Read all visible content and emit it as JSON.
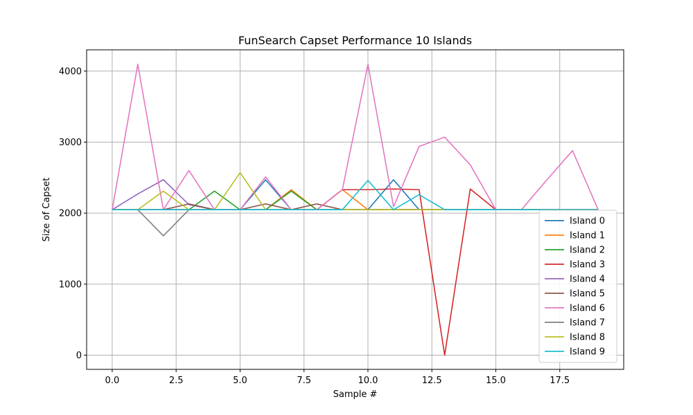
{
  "chart_data": {
    "type": "line",
    "title": "FunSearch Capset Performance 10 Islands",
    "xlabel": "Sample #",
    "ylabel": "Size of Capset",
    "xlim": [
      -1,
      20
    ],
    "ylim": [
      -200,
      4300
    ],
    "xticks": [
      0.0,
      2.5,
      5.0,
      7.5,
      10.0,
      12.5,
      15.0,
      17.5
    ],
    "xtick_labels": [
      "0.0",
      "2.5",
      "5.0",
      "7.5",
      "10.0",
      "12.5",
      "15.0",
      "17.5"
    ],
    "yticks": [
      0,
      1000,
      2000,
      3000,
      4000
    ],
    "ytick_labels": [
      "0",
      "1000",
      "2000",
      "3000",
      "4000"
    ],
    "grid": true,
    "legend_position": "lower-right",
    "x": [
      0,
      1,
      2,
      3,
      4,
      5,
      6,
      7,
      8,
      9,
      10,
      11,
      12,
      13,
      14,
      15,
      16,
      17,
      18,
      19
    ],
    "series": [
      {
        "name": "Island 0",
        "color": "#1f77b4",
        "values": [
          2048,
          2048,
          2048,
          2048,
          2048,
          2048,
          2470,
          2048,
          2048,
          2048,
          2048,
          2470,
          2048,
          2048,
          2048,
          2048,
          2048,
          2048,
          2048,
          2048
        ]
      },
      {
        "name": "Island 1",
        "color": "#ff7f0e",
        "values": [
          2048,
          2048,
          2048,
          2048,
          2048,
          2048,
          2048,
          2330,
          2048,
          2330,
          2048,
          2048,
          2048,
          2048,
          2048,
          2048,
          2048,
          2048,
          2048,
          2048
        ]
      },
      {
        "name": "Island 2",
        "color": "#2ca02c",
        "values": [
          2048,
          2048,
          2048,
          2048,
          2310,
          2048,
          2048,
          2310,
          2048,
          2048,
          2048,
          2048,
          2048,
          2048,
          2048,
          2048,
          2048,
          2048,
          2048,
          2048
        ]
      },
      {
        "name": "Island 3",
        "color": "#d62728",
        "values": [
          2048,
          2048,
          2048,
          2048,
          2048,
          2048,
          2048,
          2048,
          2048,
          2330,
          2330,
          2340,
          2330,
          0,
          2340,
          2048,
          2048,
          2048,
          2048,
          2048
        ]
      },
      {
        "name": "Island 4",
        "color": "#9467bd",
        "values": [
          2048,
          2270,
          2470,
          2120,
          2048,
          2048,
          2048,
          2048,
          2048,
          2048,
          2048,
          2048,
          2048,
          2048,
          2048,
          2048,
          2048,
          2048,
          2048,
          2048
        ]
      },
      {
        "name": "Island 5",
        "color": "#8c564b",
        "values": [
          2048,
          2048,
          2048,
          2130,
          2048,
          2048,
          2130,
          2048,
          2130,
          2048,
          2048,
          2048,
          2048,
          2048,
          2048,
          2048,
          2048,
          2048,
          2048,
          2048
        ]
      },
      {
        "name": "Island 6",
        "color": "#e377c2",
        "values": [
          2048,
          4096,
          2048,
          2600,
          2048,
          2048,
          2510,
          2048,
          2048,
          2330,
          4096,
          2090,
          2940,
          3070,
          2680,
          2048,
          2048,
          2470,
          2880,
          2048
        ]
      },
      {
        "name": "Island 7",
        "color": "#7f7f7f",
        "values": [
          2048,
          2048,
          1680,
          2048,
          2048,
          2048,
          2048,
          2048,
          2048,
          2048,
          2048,
          2048,
          2048,
          2048,
          2048,
          2048,
          2048,
          2048,
          2048,
          2048
        ]
      },
      {
        "name": "Island 8",
        "color": "#bcbd22",
        "values": [
          2048,
          2048,
          2310,
          2048,
          2048,
          2570,
          2048,
          2048,
          2048,
          2048,
          2048,
          2048,
          2048,
          2048,
          2048,
          2048,
          2048,
          2048,
          2048,
          2048
        ]
      },
      {
        "name": "Island 9",
        "color": "#17becf",
        "values": [
          2048,
          2048,
          2048,
          2048,
          2048,
          2048,
          2048,
          2048,
          2048,
          2048,
          2460,
          2048,
          2260,
          2048,
          2048,
          2048,
          2048,
          2048,
          2048,
          2048
        ]
      }
    ]
  }
}
